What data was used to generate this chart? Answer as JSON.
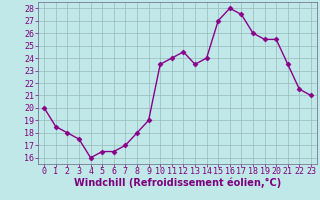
{
  "x": [
    0,
    1,
    2,
    3,
    4,
    5,
    6,
    7,
    8,
    9,
    10,
    11,
    12,
    13,
    14,
    15,
    16,
    17,
    18,
    19,
    20,
    21,
    22,
    23
  ],
  "y": [
    20,
    18.5,
    18,
    17.5,
    16,
    16.5,
    16.5,
    17,
    18,
    19,
    23.5,
    24,
    24.5,
    23.5,
    24,
    27,
    28,
    27.5,
    26,
    25.5,
    25.5,
    23.5,
    21.5,
    21
  ],
  "line_color": "#8b008b",
  "marker": "D",
  "marker_size": 2.5,
  "line_width": 1.0,
  "xlabel": "Windchill (Refroidissement éolien,°C)",
  "ylabel": "",
  "title": "",
  "xlim": [
    -0.5,
    23.5
  ],
  "ylim": [
    15.5,
    28.5
  ],
  "yticks": [
    16,
    17,
    18,
    19,
    20,
    21,
    22,
    23,
    24,
    25,
    26,
    27,
    28
  ],
  "xticks": [
    0,
    1,
    2,
    3,
    4,
    5,
    6,
    7,
    8,
    9,
    10,
    11,
    12,
    13,
    14,
    15,
    16,
    17,
    18,
    19,
    20,
    21,
    22,
    23
  ],
  "bg_color": "#c0e8e8",
  "grid_color": "#99bbbb",
  "label_color": "#800080",
  "tick_color": "#800080",
  "xlabel_fontsize": 7,
  "tick_fontsize": 6,
  "spine_color": "#666688"
}
